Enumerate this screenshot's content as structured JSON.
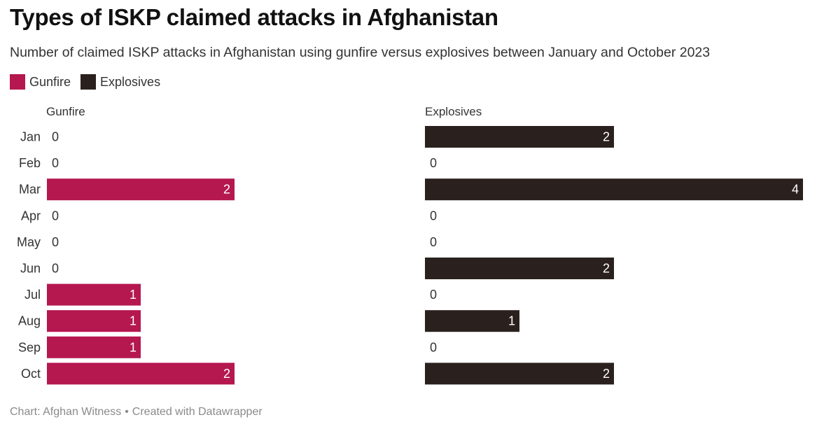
{
  "header": {
    "title": "Types of ISKP claimed attacks in Afghanistan",
    "subtitle": "Number of claimed ISKP attacks in Afghanistan using gunfire versus explosives between January and October 2023"
  },
  "legend": [
    {
      "label": "Gunfire",
      "color": "#b5174f"
    },
    {
      "label": "Explosives",
      "color": "#2a211e"
    }
  ],
  "footer": {
    "source": "Chart: Afghan Witness",
    "separator": "•",
    "credit": "Created with Datawrapper"
  },
  "chart_data": {
    "type": "bar",
    "orientation": "horizontal",
    "layout": "small-multiples",
    "categories": [
      "Jan",
      "Feb",
      "Mar",
      "Apr",
      "May",
      "Jun",
      "Jul",
      "Aug",
      "Sep",
      "Oct"
    ],
    "series": [
      {
        "name": "Gunfire",
        "color": "#b5174f",
        "values": [
          0,
          0,
          2,
          0,
          0,
          0,
          1,
          1,
          1,
          2
        ]
      },
      {
        "name": "Explosives",
        "color": "#2a211e",
        "values": [
          2,
          0,
          4,
          0,
          0,
          2,
          0,
          1,
          0,
          2
        ]
      }
    ],
    "xlim": [
      0,
      4
    ],
    "grid": false,
    "data_labels": true,
    "legend_position": "top-left"
  }
}
